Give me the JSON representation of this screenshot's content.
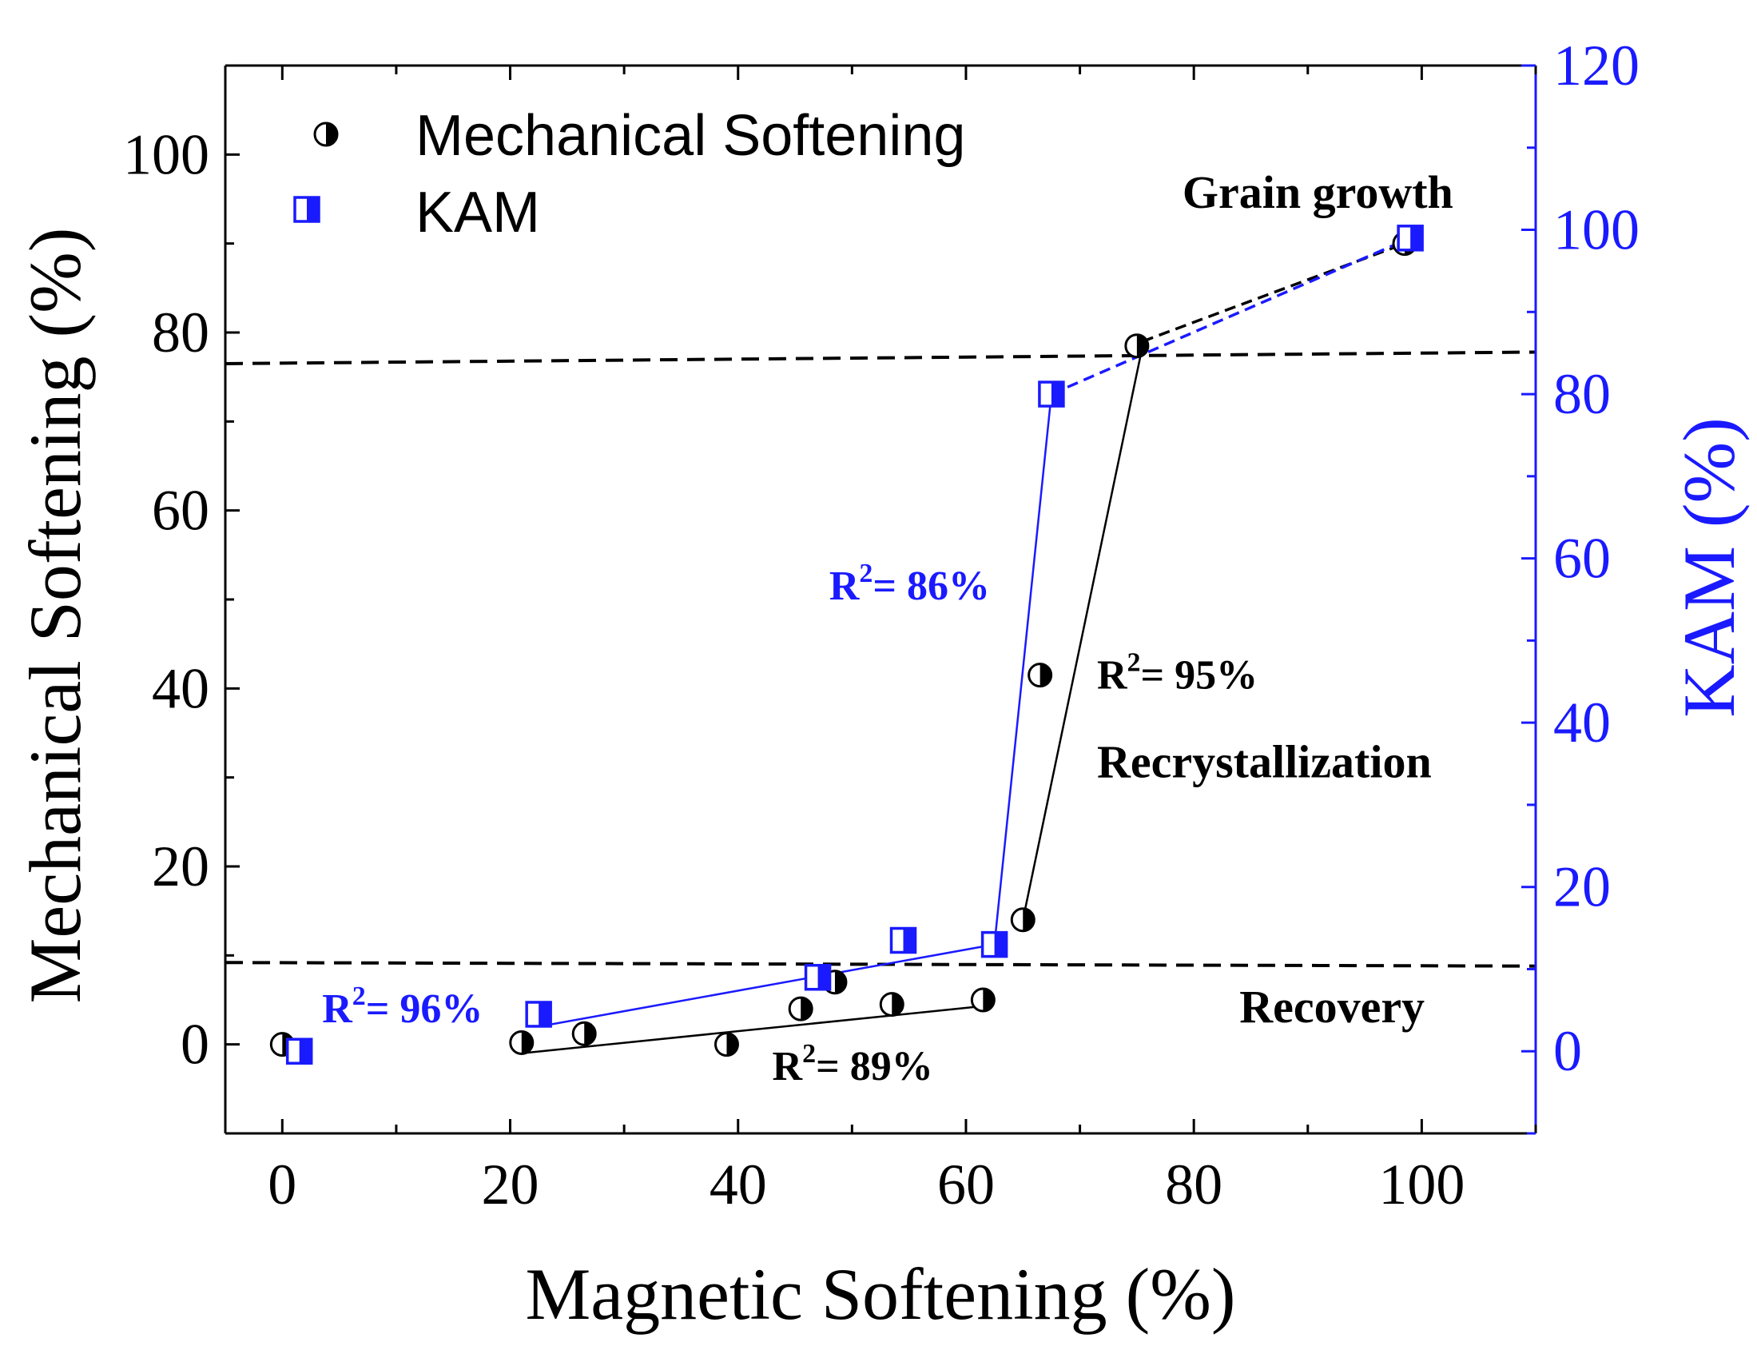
{
  "colors": {
    "black_series": "#000000",
    "blue_series": "#1a1aff",
    "axis_left": "#000000",
    "axis_right": "#1a1aff"
  },
  "chart_data": {
    "type": "scatter",
    "xlabel": "Magnetic Softening (%)",
    "ylabel_left": "Mechanical Softening (%)",
    "ylabel_right": "KAM (%)",
    "xlim": [
      -5,
      110
    ],
    "ylim_left": [
      -10,
      110
    ],
    "ylim_right": [
      -10,
      120
    ],
    "x_ticks": [
      0,
      20,
      40,
      60,
      80,
      100
    ],
    "y_left_ticks": [
      0,
      20,
      40,
      60,
      80,
      100
    ],
    "y_right_ticks": [
      0,
      20,
      40,
      60,
      80,
      100,
      120
    ],
    "legend": [
      {
        "label": "Mechanical Softening",
        "marker": "half-filled-circle",
        "color": "#000000"
      },
      {
        "label": "KAM",
        "marker": "half-filled-square",
        "color": "#1a1aff"
      }
    ],
    "series": [
      {
        "name": "Mechanical Softening",
        "axis": "left",
        "points": [
          {
            "x": 0,
            "y": 0
          },
          {
            "x": 21,
            "y": 0.2
          },
          {
            "x": 26.5,
            "y": 1.2
          },
          {
            "x": 39,
            "y": 0
          },
          {
            "x": 45.5,
            "y": 4
          },
          {
            "x": 48.5,
            "y": 7
          },
          {
            "x": 53.5,
            "y": 4.5
          },
          {
            "x": 61.5,
            "y": 5
          },
          {
            "x": 65,
            "y": 14
          },
          {
            "x": 66.5,
            "y": 41.5
          },
          {
            "x": 75,
            "y": 78.5
          },
          {
            "x": 98.5,
            "y": 90
          }
        ]
      },
      {
        "name": "KAM",
        "axis": "right",
        "points": [
          {
            "x": 1.5,
            "y": 0
          },
          {
            "x": 22.5,
            "y": 4.5
          },
          {
            "x": 47,
            "y": 9
          },
          {
            "x": 54.5,
            "y": 13.5
          },
          {
            "x": 62.5,
            "y": 13
          },
          {
            "x": 67.5,
            "y": 80
          },
          {
            "x": 99,
            "y": 99
          }
        ]
      }
    ],
    "fit_lines": [
      {
        "name": "mech-recovery-fit",
        "axis": "left",
        "style": "solid",
        "color": "#000000",
        "from": [
          21,
          -1
        ],
        "to": [
          61.5,
          4.3
        ]
      },
      {
        "name": "mech-recrystallization-fit",
        "axis": "left",
        "style": "solid",
        "color": "#000000",
        "from": [
          65,
          14
        ],
        "to": [
          75.5,
          78.5
        ]
      },
      {
        "name": "mech-graingrowth-fit",
        "axis": "left",
        "style": "dashed",
        "color": "#000000",
        "from": [
          75.5,
          79
        ],
        "to": [
          98.5,
          90
        ]
      },
      {
        "name": "kam-recovery-fit",
        "axis": "right",
        "style": "solid",
        "color": "#1a1aff",
        "from": [
          22.5,
          3
        ],
        "to": [
          62.5,
          13
        ]
      },
      {
        "name": "kam-recrystallization-fit",
        "axis": "right",
        "style": "solid",
        "color": "#1a1aff",
        "from": [
          62.5,
          13
        ],
        "to": [
          67.5,
          80
        ]
      },
      {
        "name": "kam-graingrowth-fit",
        "axis": "right",
        "style": "dashed",
        "color": "#1a1aff",
        "from": [
          67.5,
          80
        ],
        "to": [
          99,
          99
        ]
      }
    ],
    "threshold_lines": [
      {
        "name": "upper-boundary-line",
        "axis": "left",
        "from": [
          -5,
          76.5
        ],
        "to": [
          110,
          77.8
        ]
      },
      {
        "name": "lower-boundary-line",
        "axis": "left",
        "from": [
          -5,
          9.2
        ],
        "to": [
          110,
          8.8
        ]
      }
    ],
    "annotations": [
      {
        "name": "kam-r2-recrystallization",
        "text": "R",
        "sup": "2",
        "rest": "= 86%",
        "x": 48,
        "y": 50,
        "axis": "left",
        "color": "#1a1aff",
        "bold": true
      },
      {
        "name": "mech-r2-recrystallization",
        "text": "R",
        "sup": "2",
        "rest": "= 95%",
        "x": 71.5,
        "y": 40,
        "axis": "left",
        "color": "#000000",
        "bold": true
      },
      {
        "name": "kam-r2-recovery",
        "text": "R",
        "sup": "2",
        "rest": "= 96%",
        "x": 3.5,
        "y": 2.5,
        "axis": "left",
        "color": "#1a1aff",
        "bold": true
      },
      {
        "name": "mech-r2-recovery",
        "text": "R",
        "sup": "2",
        "rest": "= 89%",
        "x": 43,
        "y": -4,
        "axis": "left",
        "color": "#000000",
        "bold": true
      },
      {
        "name": "region-grain-growth",
        "text": "Grain growth",
        "sup": "",
        "rest": "",
        "x": 79,
        "y": 94,
        "axis": "left",
        "color": "#000000",
        "bold": true
      },
      {
        "name": "region-recrystallization",
        "text": "Recrystallization",
        "sup": "",
        "rest": "",
        "x": 71.5,
        "y": 30,
        "axis": "left",
        "color": "#000000",
        "bold": true
      },
      {
        "name": "region-recovery",
        "text": "Recovery",
        "sup": "",
        "rest": "",
        "x": 84,
        "y": 2.5,
        "axis": "left",
        "color": "#000000",
        "bold": true
      }
    ]
  }
}
